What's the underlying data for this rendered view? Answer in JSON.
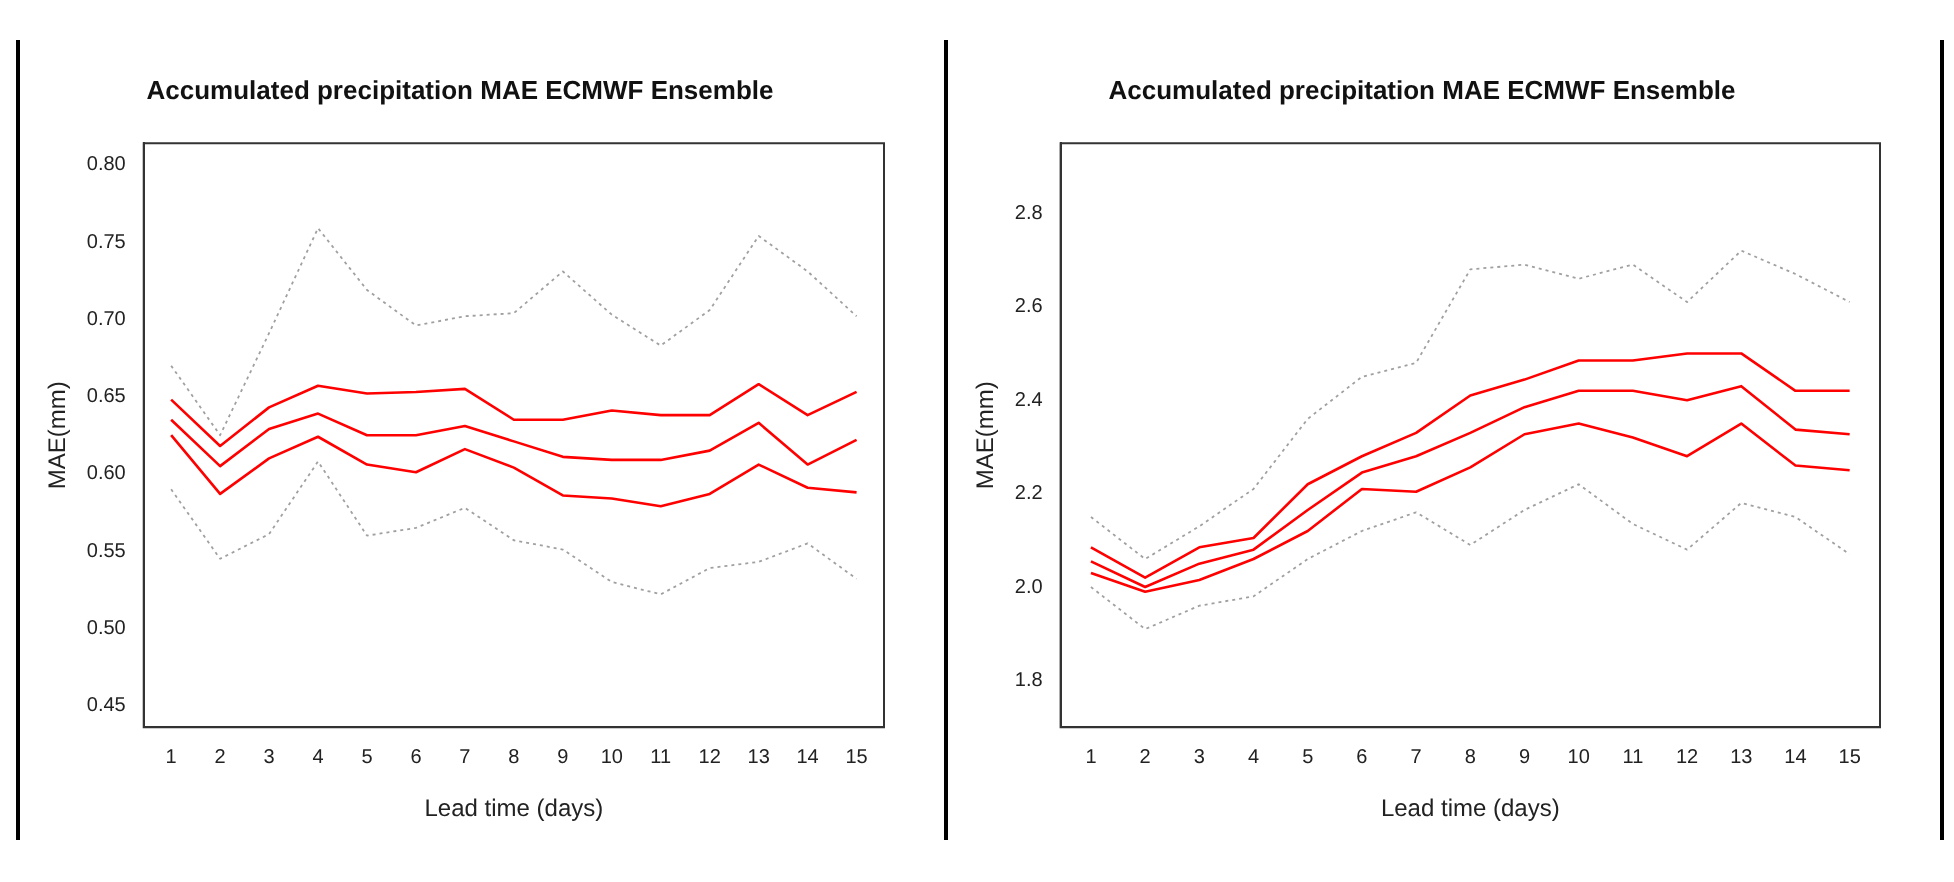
{
  "chart_data": [
    {
      "type": "line",
      "title": "Accumulated precipitation MAE ECMWF Ensemble",
      "xlabel": "Lead time (days)",
      "ylabel": "MAE(mm)",
      "marker": "none",
      "x": [
        1,
        2,
        3,
        4,
        5,
        6,
        7,
        8,
        9,
        10,
        11,
        12,
        13,
        14,
        15
      ],
      "xlim": [
        0.44,
        15.56
      ],
      "xticks": [
        1,
        2,
        3,
        4,
        5,
        6,
        7,
        8,
        9,
        10,
        11,
        12,
        13,
        14,
        15
      ],
      "ylim": [
        0.436,
        0.814
      ],
      "yticks": [
        0.45,
        {
          "value": 0.5,
          "label": "0.50"
        },
        0.55,
        {
          "value": 0.6,
          "label": "0.60"
        },
        0.65,
        {
          "value": 0.7,
          "label": "0.70"
        },
        0.75,
        {
          "value": 0.8,
          "label": "0.80"
        }
      ],
      "series": [
        {
          "color": "#a0a0a0",
          "line_style": "dotted",
          "values": [
            0.67,
            0.625,
            0.691,
            0.759,
            0.719,
            0.696,
            0.702,
            0.704,
            0.731,
            0.703,
            0.683,
            0.706,
            0.754,
            0.731,
            0.702
          ]
        },
        {
          "color": "#a0a0a0",
          "line_style": "dotted",
          "values": [
            0.59,
            0.545,
            0.561,
            0.608,
            0.56,
            0.565,
            0.578,
            0.557,
            0.551,
            0.53,
            0.522,
            0.539,
            0.543,
            0.555,
            0.532
          ]
        },
        {
          "color": "#ff0000",
          "line_style": "solid",
          "values": [
            0.648,
            0.618,
            0.643,
            0.657,
            0.652,
            0.653,
            0.655,
            0.635,
            0.635,
            0.641,
            0.638,
            0.638,
            0.658,
            0.638,
            0.653
          ]
        },
        {
          "color": "#ff0000",
          "line_style": "solid",
          "values": [
            0.635,
            0.605,
            0.629,
            0.639,
            0.625,
            0.625,
            0.631,
            0.621,
            0.611,
            0.609,
            0.609,
            0.615,
            0.633,
            0.606,
            0.622
          ]
        },
        {
          "color": "#ff0000",
          "line_style": "solid",
          "values": [
            0.625,
            0.587,
            0.61,
            0.624,
            0.606,
            0.601,
            0.616,
            0.604,
            0.586,
            0.584,
            0.579,
            0.587,
            0.606,
            0.591,
            0.588
          ]
        }
      ]
    },
    {
      "type": "line",
      "title": "Accumulated precipitation MAE ECMWF Ensemble",
      "xlabel": "Lead time (days)",
      "ylabel": "MAE(mm)",
      "marker": "none",
      "x": [
        1,
        2,
        3,
        4,
        5,
        6,
        7,
        8,
        9,
        10,
        11,
        12,
        13,
        14,
        15
      ],
      "xlim": [
        0.44,
        15.56
      ],
      "xticks": [
        1,
        2,
        3,
        4,
        5,
        6,
        7,
        8,
        9,
        10,
        11,
        12,
        13,
        14,
        15
      ],
      "ylim": [
        1.7,
        2.95
      ],
      "yticks": [
        1.8,
        {
          "value": 2,
          "label": "2.0"
        },
        2.2,
        2.4,
        2.6,
        2.8
      ],
      "series": [
        {
          "color": "#a0a0a0",
          "line_style": "dotted",
          "values": [
            2.15,
            2.06,
            2.13,
            2.21,
            2.36,
            2.45,
            2.48,
            2.68,
            2.69,
            2.66,
            2.69,
            2.61,
            2.72,
            2.67,
            2.61
          ]
        },
        {
          "color": "#a0a0a0",
          "line_style": "dotted",
          "values": [
            2.0,
            1.91,
            1.96,
            1.98,
            2.06,
            2.12,
            2.16,
            2.09,
            2.165,
            2.22,
            2.135,
            2.08,
            2.18,
            2.15,
            2.07
          ]
        },
        {
          "color": "#ff0000",
          "line_style": "solid",
          "values": [
            2.085,
            2.02,
            2.085,
            2.105,
            2.22,
            2.28,
            2.33,
            2.41,
            2.444,
            2.485,
            2.485,
            2.5,
            2.5,
            2.42,
            2.42
          ]
        },
        {
          "color": "#ff0000",
          "line_style": "solid",
          "values": [
            2.055,
            2.0,
            2.05,
            2.08,
            2.165,
            2.245,
            2.28,
            2.33,
            2.385,
            2.42,
            2.42,
            2.4,
            2.43,
            2.337,
            2.327
          ]
        },
        {
          "color": "#ff0000",
          "line_style": "solid",
          "values": [
            2.03,
            1.99,
            2.015,
            2.06,
            2.12,
            2.21,
            2.204,
            2.256,
            2.327,
            2.35,
            2.32,
            2.28,
            2.35,
            2.26,
            2.25
          ]
        }
      ]
    }
  ]
}
